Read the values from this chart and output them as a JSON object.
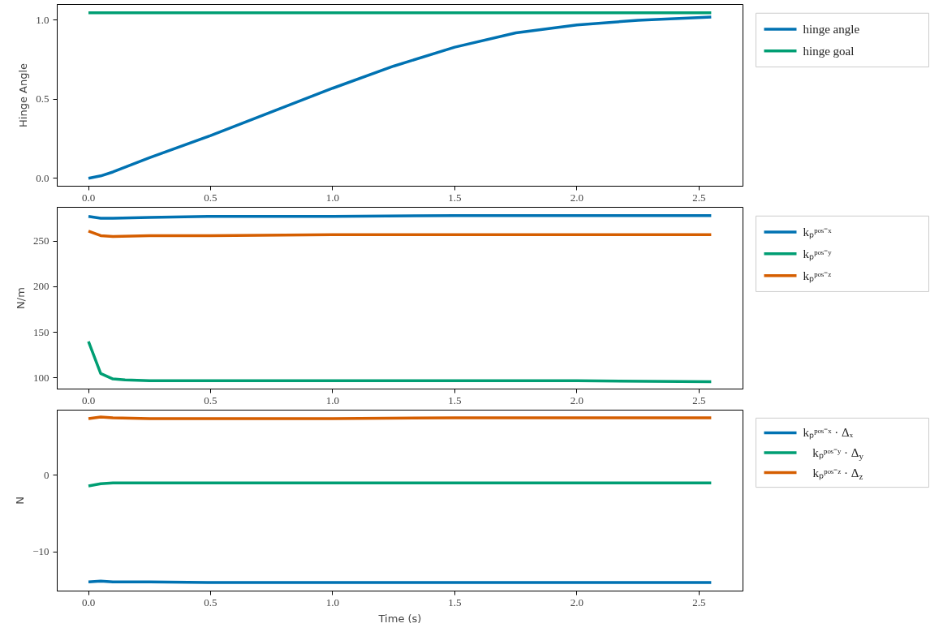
{
  "chart_data": [
    {
      "type": "line",
      "ylabel": "Hinge Angle",
      "legend": "right",
      "grid": false,
      "xlim": [
        -0.128,
        2.68
      ],
      "xticks": [
        {
          "value": 0,
          "label": "0.0"
        },
        0.5,
        {
          "value": 1,
          "label": "1.0"
        },
        1.5,
        {
          "value": 2,
          "label": "2.0"
        },
        2.5
      ],
      "ylim": [
        -0.05,
        1.1
      ],
      "yticks": [
        {
          "value": 0,
          "label": "0.0"
        },
        0.5,
        {
          "value": 1,
          "label": "1.0"
        }
      ],
      "series": [
        {
          "name": "hinge angle",
          "color": "#0072b2",
          "x": [
            0,
            0.05,
            0.1,
            0.25,
            0.5,
            0.75,
            1.0,
            1.25,
            1.5,
            1.75,
            2.0,
            2.25,
            2.55
          ],
          "values": [
            0,
            0.015,
            0.04,
            0.13,
            0.27,
            0.42,
            0.57,
            0.71,
            0.83,
            0.92,
            0.97,
            1.0,
            1.02
          ]
        },
        {
          "name": "hinge goal",
          "color": "#009e73",
          "x": [
            0,
            2.55
          ],
          "values": [
            1.047,
            1.047
          ]
        }
      ]
    },
    {
      "type": "line",
      "ylabel": "N/m",
      "legend": "right",
      "grid": false,
      "xlim": [
        -0.128,
        2.68
      ],
      "xticks": [
        {
          "value": 0,
          "label": "0.0"
        },
        0.5,
        {
          "value": 1,
          "label": "1.0"
        },
        1.5,
        {
          "value": 2,
          "label": "2.0"
        },
        2.5
      ],
      "ylim": [
        88,
        287
      ],
      "yticks": [
        100,
        150,
        200,
        250
      ],
      "series": [
        {
          "name": "kₚᵖᵒˢ⁻ˣ",
          "color": "#0072b2",
          "x": [
            0,
            0.05,
            0.1,
            0.25,
            0.5,
            1.0,
            1.5,
            2.0,
            2.55
          ],
          "values": [
            277,
            275,
            275,
            276,
            277,
            277,
            278,
            278,
            278
          ]
        },
        {
          "name": "kₚᵖᵒˢ⁻ʸ",
          "color": "#009e73",
          "x": [
            0,
            0.05,
            0.1,
            0.15,
            0.25,
            0.5,
            1.0,
            1.5,
            2.0,
            2.55
          ],
          "values": [
            140,
            105,
            99,
            98,
            97,
            97,
            97,
            97,
            97,
            96
          ]
        },
        {
          "name": "kₚᵖᵒˢ⁻ᶻ",
          "color": "#d55e00",
          "x": [
            0,
            0.05,
            0.1,
            0.25,
            0.5,
            1.0,
            1.5,
            2.0,
            2.55
          ],
          "values": [
            261,
            256,
            255,
            256,
            256,
            257,
            257,
            257,
            257
          ]
        }
      ]
    },
    {
      "type": "line",
      "ylabel": "N",
      "xlabel": "Time (s)",
      "legend": "right",
      "grid": false,
      "xlim": [
        -0.128,
        2.68
      ],
      "xticks": [
        {
          "value": 0,
          "label": "0.0"
        },
        0.5,
        {
          "value": 1,
          "label": "1.0"
        },
        1.5,
        {
          "value": 2,
          "label": "2.0"
        },
        2.5
      ],
      "ylim": [
        -15.1,
        8.5
      ],
      "yticks": [
        {
          "value": -10,
          "label": "−10"
        },
        0
      ],
      "series": [
        {
          "name": "kₚᵖᵒˢ⁻ˣ · Δₓ",
          "color": "#0072b2",
          "x": [
            0,
            0.05,
            0.1,
            0.25,
            0.5,
            1.0,
            1.5,
            2.0,
            2.55
          ],
          "values": [
            -13.9,
            -13.8,
            -13.9,
            -13.9,
            -14.0,
            -14.0,
            -14.0,
            -14.0,
            -14.0
          ]
        },
        {
          "name": "kₚᵖᵒˢ⁻ʸ · Δ$_{y}$",
          "color": "#009e73",
          "x": [
            0,
            0.05,
            0.1,
            0.5,
            1.0,
            1.5,
            2.0,
            2.55
          ],
          "values": [
            -1.4,
            -1.1,
            -1.0,
            -1.0,
            -1.0,
            -1.0,
            -1.0,
            -1.0
          ]
        },
        {
          "name": "kₚᵖᵒˢ⁻ᶻ · Δ$_{z}$",
          "color": "#d55e00",
          "x": [
            0,
            0.05,
            0.1,
            0.25,
            0.5,
            1.0,
            1.5,
            2.0,
            2.55
          ],
          "values": [
            7.4,
            7.6,
            7.5,
            7.4,
            7.4,
            7.4,
            7.5,
            7.5,
            7.5
          ]
        }
      ]
    }
  ]
}
